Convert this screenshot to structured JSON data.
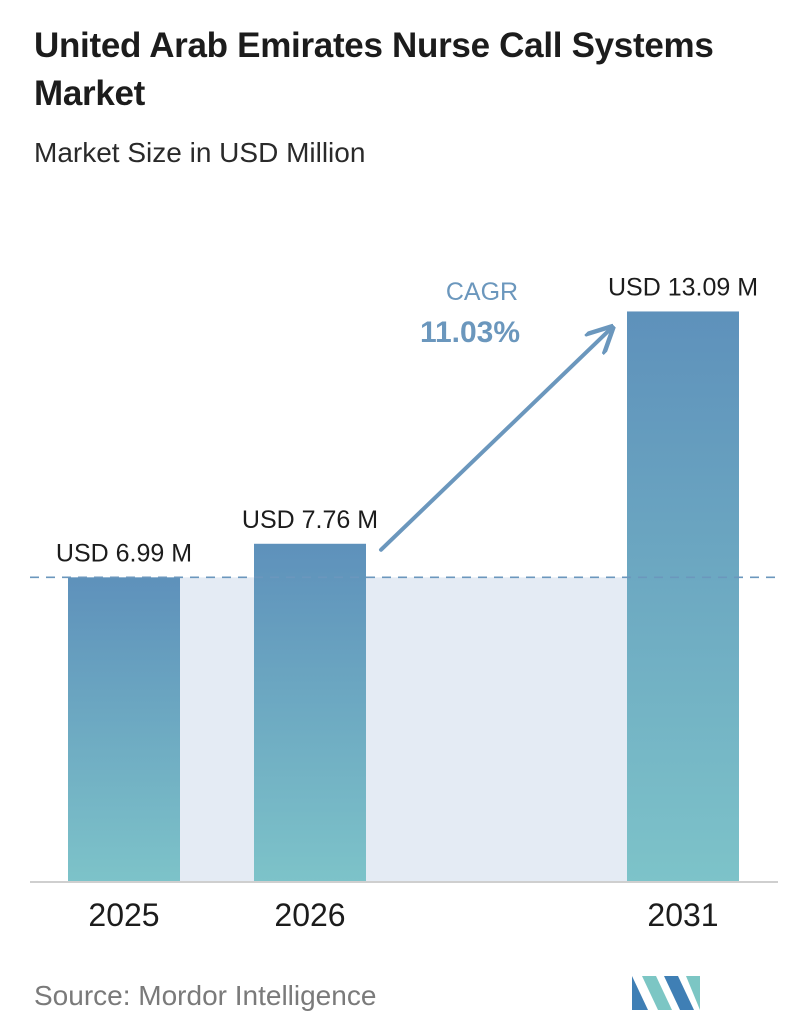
{
  "title": "United Arab Emirates Nurse Call Systems Market",
  "subtitle": "Market Size in USD Million",
  "source": "Source:  Mordor Intelligence",
  "chart_data": {
    "type": "bar",
    "categories": [
      "2025",
      "2026",
      "2031"
    ],
    "values": [
      6.99,
      7.76,
      13.09
    ],
    "data_labels": [
      "USD 6.99 M",
      "USD 7.76 M",
      "USD 13.09 M"
    ],
    "cagr_label": "CAGR",
    "cagr_value": "11.03%",
    "reference_value": 6.99,
    "ylim": [
      0,
      14.5
    ],
    "grid": false,
    "colors": {
      "bar_top": "#5e91bb",
      "bar_bottom": "#7dc3c9",
      "band": "#e4ebf4",
      "arrow": "#6b97bd",
      "cagr": "#6b97bd",
      "dashed": "#6b97bd"
    }
  }
}
